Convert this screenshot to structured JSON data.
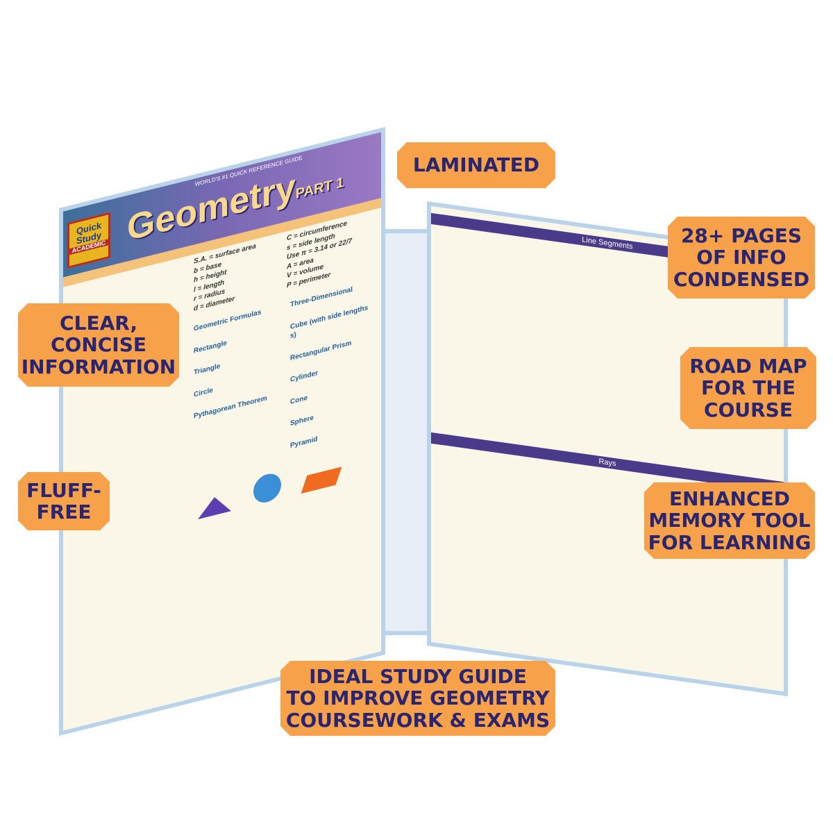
{
  "badges": {
    "laminated": [
      "LAMINATED"
    ],
    "pages": [
      "28+ PAGES",
      "OF INFO",
      "CONDENSED"
    ],
    "clear": [
      "CLEAR,",
      "CONCISE",
      "INFORMATION"
    ],
    "roadmap": [
      "ROAD MAP",
      "FOR THE",
      "COURSE"
    ],
    "fluff": [
      "FLUFF-",
      "FREE"
    ],
    "memory": [
      "ENHANCED",
      "MEMORY TOOL",
      "FOR LEARNING"
    ],
    "ideal": [
      "IDEAL STUDY GUIDE",
      "TO IMPROVE GEOMETRY",
      "COURSEWORK & EXAMS"
    ]
  },
  "guide": {
    "logo": [
      "Quick",
      "Study",
      "ACADEMIC"
    ],
    "tagline": "WORLD'S #1 QUICK REFERENCE GUIDE",
    "title": "Geometry",
    "part": "PART 1",
    "legend": [
      "S.A. = surface area",
      "C = circumference",
      "b = base",
      "s = side length",
      "h = height",
      "Use π = 3.14 or 22/7",
      "l = length",
      "A = area",
      "r = radius",
      "V = volume",
      "d = diameter",
      "P = perimeter"
    ],
    "sections_left": [
      "Geometric Formulas",
      "Rectangle",
      "Triangle",
      "Circle",
      "Pythagorean Theorem"
    ],
    "sections_mid": [
      "Three-Dimensional",
      "Cube (with side lengths s)",
      "Rectangular Prism",
      "Cylinder",
      "Cone",
      "Sphere",
      "Pyramid"
    ],
    "sections_right": [
      "Line Segments",
      "Rays"
    ]
  },
  "colors": {
    "badge": "#f7a24a",
    "badge_text": "#2a2570",
    "border": "#b9d3ea"
  }
}
